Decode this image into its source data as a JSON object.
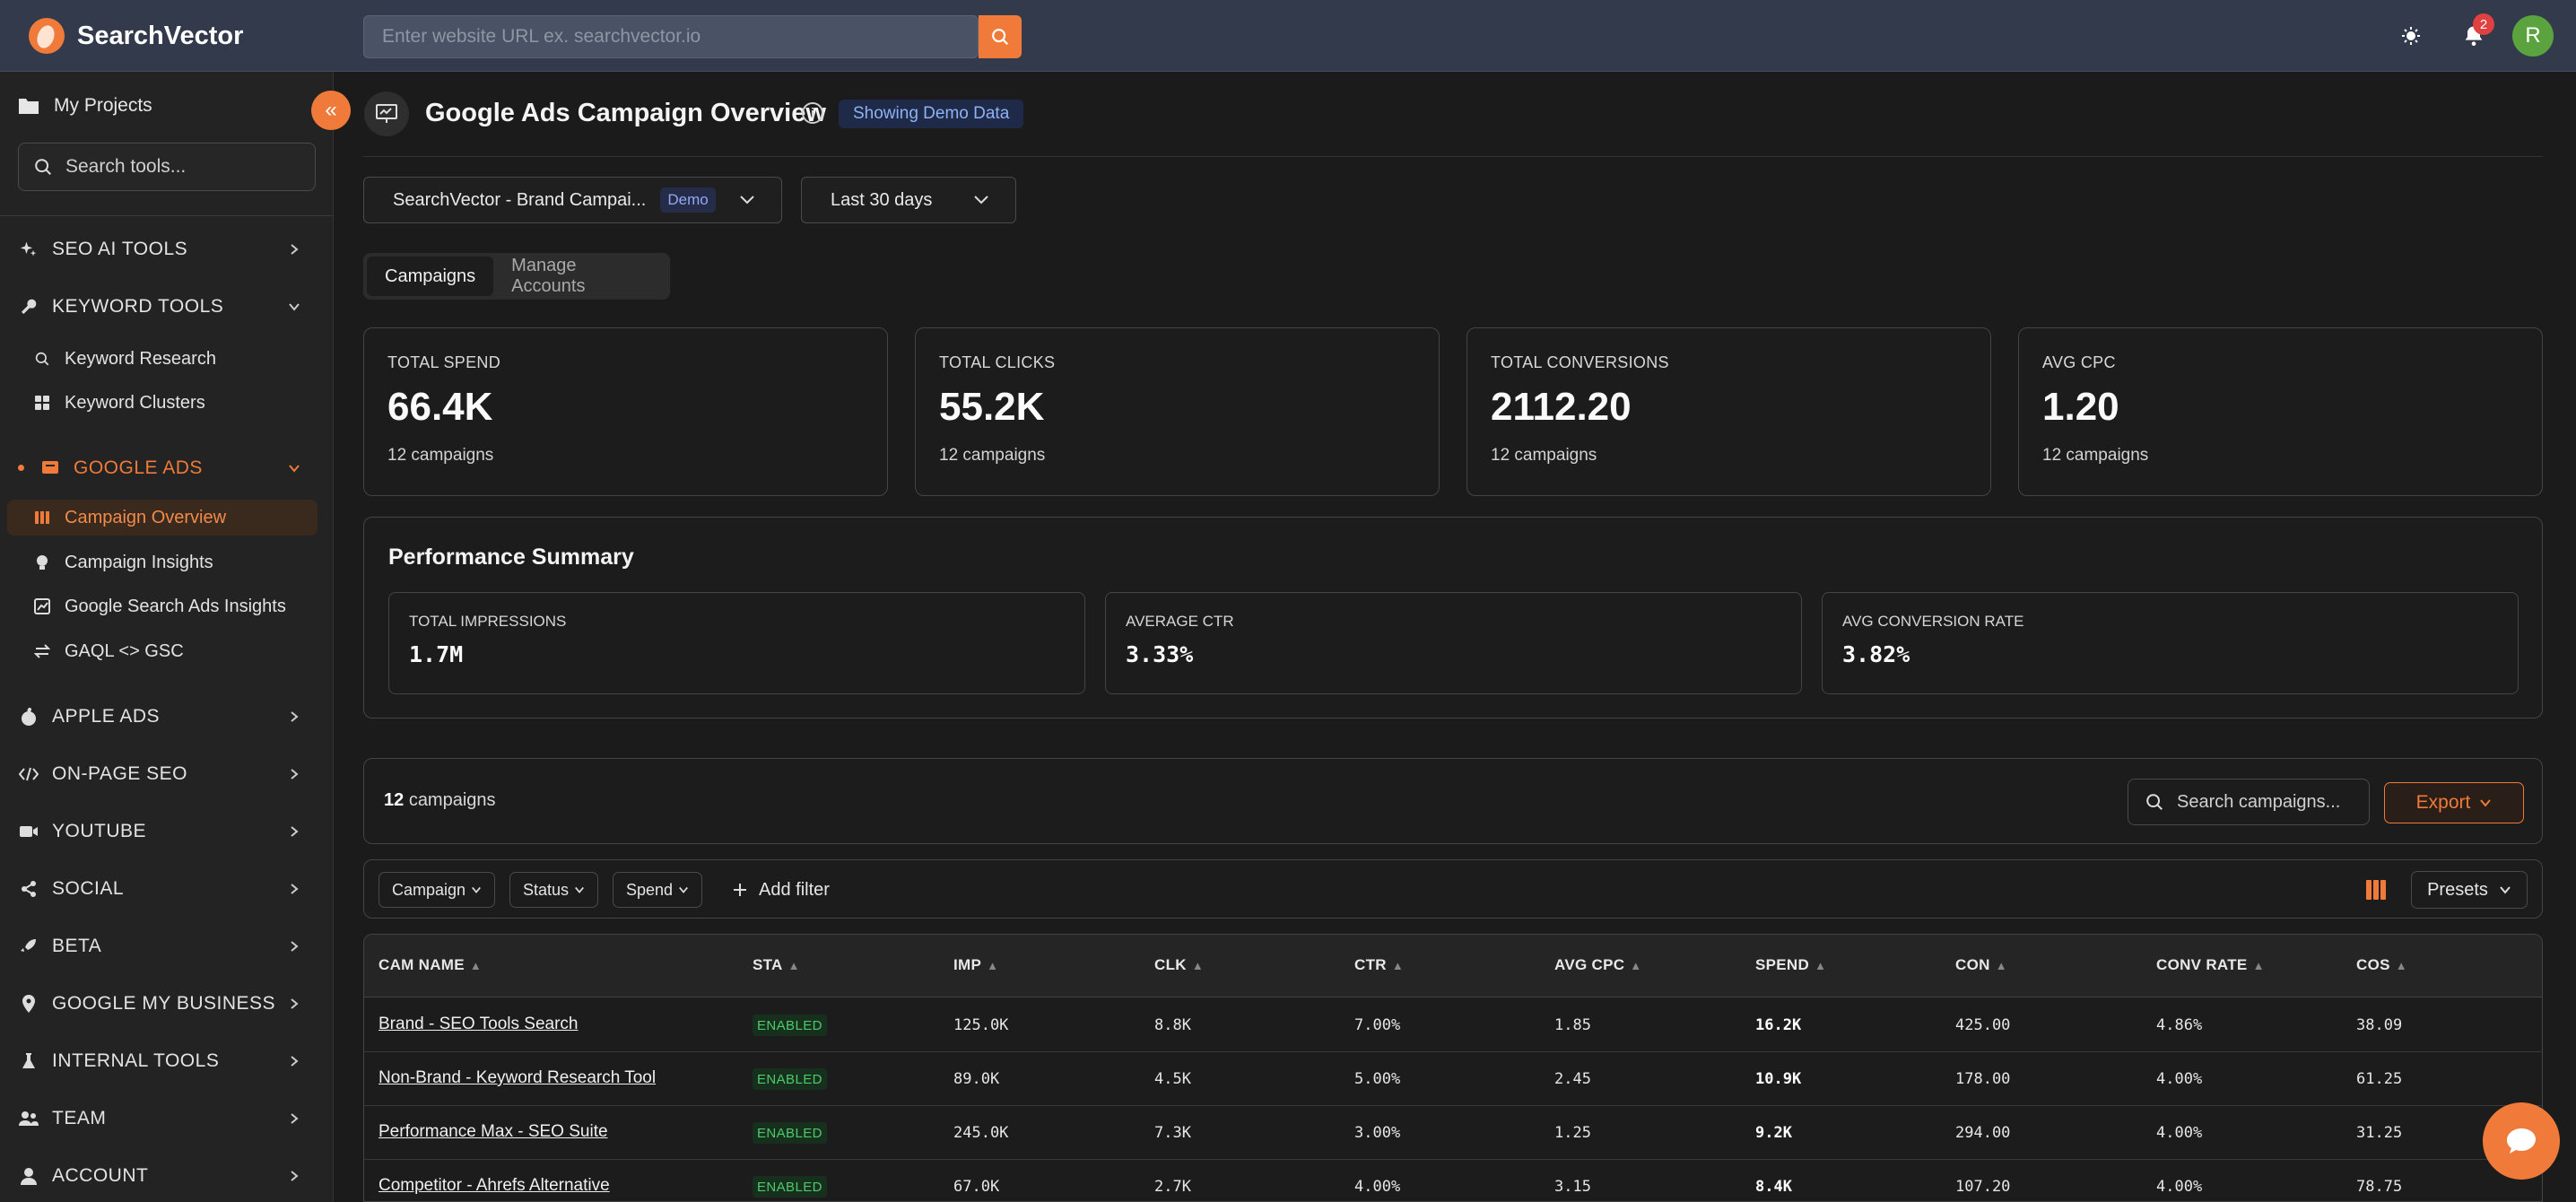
{
  "app": {
    "name": "SearchVector",
    "url_placeholder": "Enter website URL ex. searchvector.io",
    "notification_count": "2",
    "avatar_initial": "R",
    "accent": "#ef7a3a"
  },
  "sidebar": {
    "projects_label": "My Projects",
    "search_placeholder": "Search tools...",
    "sections": {
      "seo_ai": "SEO AI TOOLS",
      "keyword": "KEYWORD TOOLS",
      "google_ads": "GOOGLE ADS",
      "apple_ads": "APPLE ADS",
      "onpage": "ON-PAGE SEO",
      "youtube": "YOUTUBE",
      "social": "SOCIAL",
      "beta": "BETA",
      "gmb": "GOOGLE MY BUSINESS",
      "internal": "INTERNAL TOOLS",
      "team": "TEAM",
      "account": "ACCOUNT"
    },
    "keyword_items": [
      "Keyword Research",
      "Keyword Clusters"
    ],
    "google_ads_items": [
      "Campaign Overview",
      "Campaign Insights",
      "Google Search Ads Insights",
      "GAQL <> GSC"
    ]
  },
  "header": {
    "title": "Google Ads Campaign Overview",
    "demo_badge": "Showing Demo Data"
  },
  "filters": {
    "account_label": "SearchVector - Brand Campai...",
    "account_tag": "Demo",
    "date_range": "Last 30 days"
  },
  "tabs": [
    "Campaigns",
    "Manage Accounts"
  ],
  "kpis": [
    {
      "label": "TOTAL SPEND",
      "value": "66.4K",
      "sub": "12 campaigns"
    },
    {
      "label": "TOTAL CLICKS",
      "value": "55.2K",
      "sub": "12 campaigns"
    },
    {
      "label": "TOTAL CONVERSIONS",
      "value": "2112.20",
      "sub": "12 campaigns"
    },
    {
      "label": "AVG CPC",
      "value": "1.20",
      "sub": "12 campaigns"
    }
  ],
  "performance": {
    "title": "Performance Summary",
    "cards": [
      {
        "label": "TOTAL IMPRESSIONS",
        "value": "1.7M"
      },
      {
        "label": "AVERAGE CTR",
        "value": "3.33%"
      },
      {
        "label": "AVG CONVERSION RATE",
        "value": "3.82%"
      }
    ]
  },
  "campaigns_bar": {
    "count": "12",
    "count_suffix": "campaigns",
    "search_placeholder": "Search campaigns...",
    "export_label": "Export"
  },
  "filter_bar": {
    "pills": [
      "Campaign",
      "Status",
      "Spend"
    ],
    "add_filter": "Add filter",
    "presets": "Presets"
  },
  "table": {
    "headers": [
      "CAM NAME",
      "STA",
      "IMP",
      "CLK",
      "CTR",
      "AVG CPC",
      "SPEND",
      "CON",
      "CONV RATE",
      "COS"
    ],
    "rows": [
      {
        "name": "Brand - SEO Tools Search",
        "status": "ENABLED",
        "imp": "125.0K",
        "clk": "8.8K",
        "ctr": "7.00%",
        "cpc": "1.85",
        "spend": "16.2K",
        "con": "425.00",
        "conv_rate": "4.86%",
        "cos": "38.09"
      },
      {
        "name": "Non-Brand - Keyword Research Tool",
        "status": "ENABLED",
        "imp": "89.0K",
        "clk": "4.5K",
        "ctr": "5.00%",
        "cpc": "2.45",
        "spend": "10.9K",
        "con": "178.00",
        "conv_rate": "4.00%",
        "cos": "61.25"
      },
      {
        "name": "Performance Max - SEO Suite",
        "status": "ENABLED",
        "imp": "245.0K",
        "clk": "7.3K",
        "ctr": "3.00%",
        "cpc": "1.25",
        "spend": "9.2K",
        "con": "294.00",
        "conv_rate": "4.00%",
        "cos": "31.25"
      },
      {
        "name": "Competitor - Ahrefs Alternative",
        "status": "ENABLED",
        "imp": "67.0K",
        "clk": "2.7K",
        "ctr": "4.00%",
        "cpc": "3.15",
        "spend": "8.4K",
        "con": "107.20",
        "conv_rate": "4.00%",
        "cos": "78.75"
      }
    ]
  }
}
